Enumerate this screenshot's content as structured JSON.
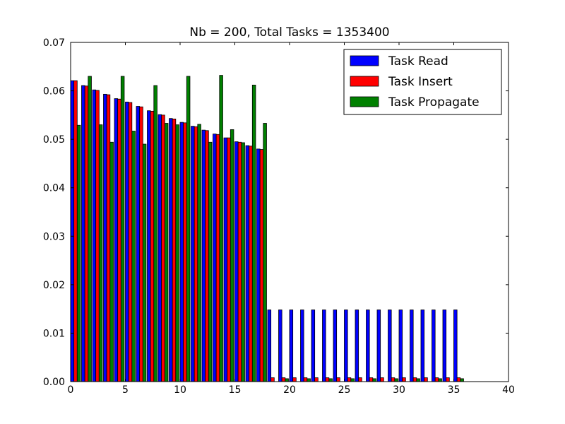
{
  "chart_data": {
    "type": "bar",
    "title": "Nb = 200, Total Tasks = 1353400",
    "xlabel": "",
    "ylabel": "",
    "xlim": [
      0,
      40
    ],
    "ylim": [
      0,
      0.07
    ],
    "xticks": [
      0,
      5,
      10,
      15,
      20,
      25,
      30,
      35,
      40
    ],
    "xtick_labels": [
      "0",
      "5",
      "10",
      "15",
      "20",
      "25",
      "30",
      "35",
      "40"
    ],
    "yticks": [
      0,
      0.01,
      0.02,
      0.03,
      0.04,
      0.05,
      0.06,
      0.07
    ],
    "ytick_labels": [
      "0.00",
      "0.01",
      "0.02",
      "0.03",
      "0.04",
      "0.05",
      "0.06",
      "0.07"
    ],
    "grid": false,
    "legend_position": "top-right",
    "categories": [
      0,
      1,
      2,
      3,
      4,
      5,
      6,
      7,
      8,
      9,
      10,
      11,
      12,
      13,
      14,
      15,
      16,
      17,
      18,
      19,
      20,
      21,
      22,
      23,
      24,
      25,
      26,
      27,
      28,
      29,
      30,
      31,
      32,
      33,
      34,
      35
    ],
    "series": [
      {
        "name": "Task Read",
        "color": "#0000ff",
        "values": [
          0.0621,
          0.0611,
          0.0602,
          0.0593,
          0.0584,
          0.0577,
          0.0568,
          0.0559,
          0.0551,
          0.0543,
          0.0535,
          0.0527,
          0.0519,
          0.0511,
          0.0503,
          0.0495,
          0.0487,
          0.048,
          0.0148,
          0.0148,
          0.0148,
          0.0148,
          0.0148,
          0.0148,
          0.0148,
          0.0148,
          0.0148,
          0.0148,
          0.0148,
          0.0148,
          0.0148,
          0.0148,
          0.0148,
          0.0148,
          0.0148,
          0.0148
        ]
      },
      {
        "name": "Task Insert",
        "color": "#ff0000",
        "values": [
          0.0621,
          0.061,
          0.0601,
          0.0592,
          0.0583,
          0.0576,
          0.0567,
          0.0558,
          0.055,
          0.0542,
          0.0534,
          0.0526,
          0.0518,
          0.051,
          0.0503,
          0.0494,
          0.0486,
          0.0479,
          0.0008,
          0.0008,
          0.0008,
          0.0008,
          0.0008,
          0.0008,
          0.0008,
          0.0008,
          0.0008,
          0.0008,
          0.0008,
          0.0008,
          0.0008,
          0.0008,
          0.0008,
          0.0008,
          0.0008,
          0.0008
        ]
      },
      {
        "name": "Task Propagate",
        "color": "#008000",
        "values": [
          0.0529,
          0.063,
          0.053,
          0.0494,
          0.063,
          0.0517,
          0.049,
          0.0611,
          0.0533,
          0.053,
          0.063,
          0.0531,
          0.0494,
          0.0632,
          0.052,
          0.0493,
          0.0612,
          0.0533,
          0,
          0.0006,
          0,
          0.0006,
          0,
          0.0006,
          0,
          0.0006,
          0,
          0.0006,
          0,
          0.0006,
          0,
          0.0006,
          0,
          0.0006,
          0,
          0.0006
        ]
      }
    ]
  }
}
